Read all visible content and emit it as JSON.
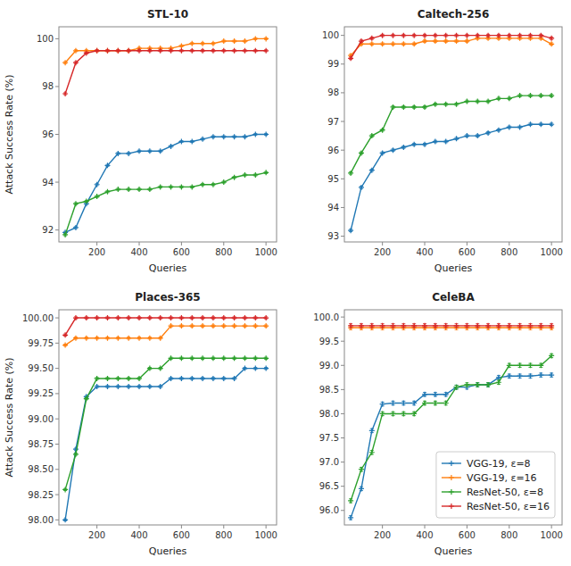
{
  "chart_data": [
    {
      "type": "line",
      "title": "STL-10",
      "xlabel": "Queries",
      "ylabel": "Attack Success Rate (%)",
      "marker": "plus",
      "grid": false,
      "x": [
        50,
        100,
        150,
        200,
        250,
        300,
        350,
        400,
        450,
        500,
        550,
        600,
        650,
        700,
        750,
        800,
        850,
        900,
        950,
        1000
      ],
      "xlim": [
        20,
        1050
      ],
      "xticks": [
        200,
        400,
        600,
        800,
        1000
      ],
      "ylim": [
        91.5,
        100.5
      ],
      "yticks": [
        92,
        94,
        96,
        98,
        100
      ],
      "series": [
        {
          "color": "#1f77b4",
          "error": 0.04,
          "values": [
            91.9,
            92.1,
            93.1,
            93.9,
            94.7,
            95.2,
            95.2,
            95.3,
            95.3,
            95.3,
            95.5,
            95.7,
            95.7,
            95.8,
            95.9,
            95.9,
            95.9,
            95.9,
            96.0,
            96.0
          ]
        },
        {
          "color": "#ff7f0e",
          "error": 0.04,
          "values": [
            99.0,
            99.5,
            99.5,
            99.5,
            99.5,
            99.5,
            99.5,
            99.6,
            99.6,
            99.6,
            99.6,
            99.7,
            99.8,
            99.8,
            99.8,
            99.9,
            99.9,
            99.9,
            100.0,
            100.0
          ]
        },
        {
          "color": "#2ca02c",
          "error": 0.04,
          "values": [
            91.8,
            93.1,
            93.2,
            93.4,
            93.6,
            93.7,
            93.7,
            93.7,
            93.7,
            93.8,
            93.8,
            93.8,
            93.8,
            93.9,
            93.9,
            94.0,
            94.2,
            94.3,
            94.3,
            94.4
          ]
        },
        {
          "color": "#d62728",
          "error": 0.04,
          "values": [
            97.7,
            99.0,
            99.4,
            99.5,
            99.5,
            99.5,
            99.5,
            99.5,
            99.5,
            99.5,
            99.5,
            99.5,
            99.5,
            99.5,
            99.5,
            99.5,
            99.5,
            99.5,
            99.5,
            99.5
          ]
        }
      ]
    },
    {
      "type": "line",
      "title": "Caltech-256",
      "xlabel": "Queries",
      "marker": "plus",
      "grid": false,
      "x": [
        50,
        100,
        150,
        200,
        250,
        300,
        350,
        400,
        450,
        500,
        550,
        600,
        650,
        700,
        750,
        800,
        850,
        900,
        950,
        1000
      ],
      "xlim": [
        20,
        1050
      ],
      "xticks": [
        200,
        400,
        600,
        800,
        1000
      ],
      "ylim": [
        92.8,
        100.3
      ],
      "yticks": [
        93,
        94,
        95,
        96,
        97,
        98,
        99,
        100
      ],
      "series": [
        {
          "color": "#1f77b4",
          "error": 0.04,
          "values": [
            93.2,
            94.7,
            95.3,
            95.9,
            96.0,
            96.1,
            96.2,
            96.2,
            96.3,
            96.3,
            96.4,
            96.5,
            96.5,
            96.6,
            96.7,
            96.8,
            96.8,
            96.9,
            96.9,
            96.9
          ]
        },
        {
          "color": "#ff7f0e",
          "error": 0.04,
          "values": [
            99.3,
            99.7,
            99.7,
            99.7,
            99.7,
            99.7,
            99.7,
            99.8,
            99.8,
            99.8,
            99.8,
            99.8,
            99.9,
            99.9,
            99.9,
            99.9,
            99.9,
            99.9,
            99.9,
            99.7
          ]
        },
        {
          "color": "#2ca02c",
          "error": 0.04,
          "values": [
            95.2,
            95.9,
            96.5,
            96.7,
            97.5,
            97.5,
            97.5,
            97.5,
            97.6,
            97.6,
            97.6,
            97.7,
            97.7,
            97.7,
            97.8,
            97.8,
            97.9,
            97.9,
            97.9,
            97.9
          ]
        },
        {
          "color": "#d62728",
          "error": 0.04,
          "values": [
            99.2,
            99.8,
            99.9,
            100.0,
            100.0,
            100.0,
            100.0,
            100.0,
            100.0,
            100.0,
            100.0,
            100.0,
            100.0,
            100.0,
            100.0,
            100.0,
            100.0,
            100.0,
            100.0,
            99.9
          ]
        }
      ]
    },
    {
      "type": "line",
      "title": "Places-365",
      "xlabel": "Queries",
      "ylabel": "Attack Success Rate (%)",
      "marker": "plus",
      "grid": false,
      "x": [
        50,
        100,
        150,
        200,
        250,
        300,
        350,
        400,
        450,
        500,
        550,
        600,
        650,
        700,
        750,
        800,
        850,
        900,
        950,
        1000
      ],
      "xlim": [
        20,
        1050
      ],
      "xticks": [
        200,
        400,
        600,
        800,
        1000
      ],
      "ylim": [
        97.95,
        100.08
      ],
      "yticks": [
        {
          "value": 98.0,
          "label": "98.00"
        },
        98.25,
        {
          "value": 98.5,
          "label": "98.50"
        },
        98.75,
        {
          "value": 99.0,
          "label": "99.00"
        },
        99.25,
        {
          "value": 99.5,
          "label": "99.50"
        },
        99.75,
        {
          "value": 100.0,
          "label": "100.00"
        }
      ],
      "series": [
        {
          "color": "#1f77b4",
          "error": 0.01,
          "values": [
            98.0,
            98.7,
            99.22,
            99.32,
            99.32,
            99.32,
            99.32,
            99.32,
            99.32,
            99.32,
            99.4,
            99.4,
            99.4,
            99.4,
            99.4,
            99.4,
            99.4,
            99.5,
            99.5,
            99.5
          ]
        },
        {
          "color": "#ff7f0e",
          "error": 0.01,
          "values": [
            99.73,
            99.8,
            99.8,
            99.8,
            99.8,
            99.8,
            99.8,
            99.8,
            99.8,
            99.8,
            99.92,
            99.92,
            99.92,
            99.92,
            99.92,
            99.92,
            99.92,
            99.92,
            99.92,
            99.92
          ]
        },
        {
          "color": "#2ca02c",
          "error": 0.01,
          "values": [
            98.3,
            98.65,
            99.2,
            99.4,
            99.4,
            99.4,
            99.4,
            99.4,
            99.5,
            99.5,
            99.6,
            99.6,
            99.6,
            99.6,
            99.6,
            99.6,
            99.6,
            99.6,
            99.6,
            99.6
          ]
        },
        {
          "color": "#d62728",
          "error": 0.01,
          "values": [
            99.83,
            100.0,
            100.0,
            100.0,
            100.0,
            100.0,
            100.0,
            100.0,
            100.0,
            100.0,
            100.0,
            100.0,
            100.0,
            100.0,
            100.0,
            100.0,
            100.0,
            100.0,
            100.0,
            100.0
          ]
        }
      ]
    },
    {
      "type": "line",
      "title": "CeleBA",
      "xlabel": "Queries",
      "marker": "plus",
      "grid": false,
      "legend": "lower right",
      "x": [
        50,
        100,
        150,
        200,
        250,
        300,
        350,
        400,
        450,
        500,
        550,
        600,
        650,
        700,
        750,
        800,
        850,
        900,
        950,
        1000
      ],
      "xlim": [
        20,
        1050
      ],
      "xticks": [
        200,
        400,
        600,
        800,
        1000
      ],
      "ylim": [
        95.7,
        100.15
      ],
      "yticks": [
        {
          "value": 96.0,
          "label": "96.0"
        },
        96.5,
        {
          "value": 97.0,
          "label": "97.0"
        },
        97.5,
        {
          "value": 98.0,
          "label": "98.0"
        },
        98.5,
        {
          "value": 99.0,
          "label": "99.0"
        },
        99.5,
        {
          "value": 100.0,
          "label": "100.0"
        }
      ],
      "series": [
        {
          "name": "VGG-19, ε=8",
          "color": "#1f77b4",
          "error": 0.04,
          "values": [
            95.85,
            96.45,
            97.65,
            98.2,
            98.22,
            98.22,
            98.22,
            98.4,
            98.4,
            98.4,
            98.55,
            98.55,
            98.6,
            98.6,
            98.75,
            98.78,
            98.78,
            98.78,
            98.8,
            98.8
          ]
        },
        {
          "name": "VGG-19, ε=16",
          "color": "#ff7f0e",
          "error": 0.04,
          "values": [
            99.78,
            99.78,
            99.78,
            99.78,
            99.78,
            99.78,
            99.78,
            99.78,
            99.78,
            99.78,
            99.78,
            99.78,
            99.78,
            99.78,
            99.78,
            99.78,
            99.78,
            99.78,
            99.78,
            99.78
          ]
        },
        {
          "name": "ResNet-50, ε=8",
          "color": "#2ca02c",
          "error": 0.04,
          "values": [
            96.2,
            96.85,
            97.2,
            98.0,
            98.0,
            98.0,
            98.0,
            98.22,
            98.22,
            98.22,
            98.55,
            98.6,
            98.6,
            98.6,
            98.65,
            99.0,
            99.0,
            99.0,
            99.0,
            99.2
          ]
        },
        {
          "name": "ResNet-50, ε=16",
          "color": "#d62728",
          "error": 0.04,
          "values": [
            99.82,
            99.82,
            99.82,
            99.82,
            99.82,
            99.82,
            99.82,
            99.82,
            99.82,
            99.82,
            99.82,
            99.82,
            99.82,
            99.82,
            99.82,
            99.82,
            99.82,
            99.82,
            99.82,
            99.82
          ]
        }
      ]
    }
  ]
}
